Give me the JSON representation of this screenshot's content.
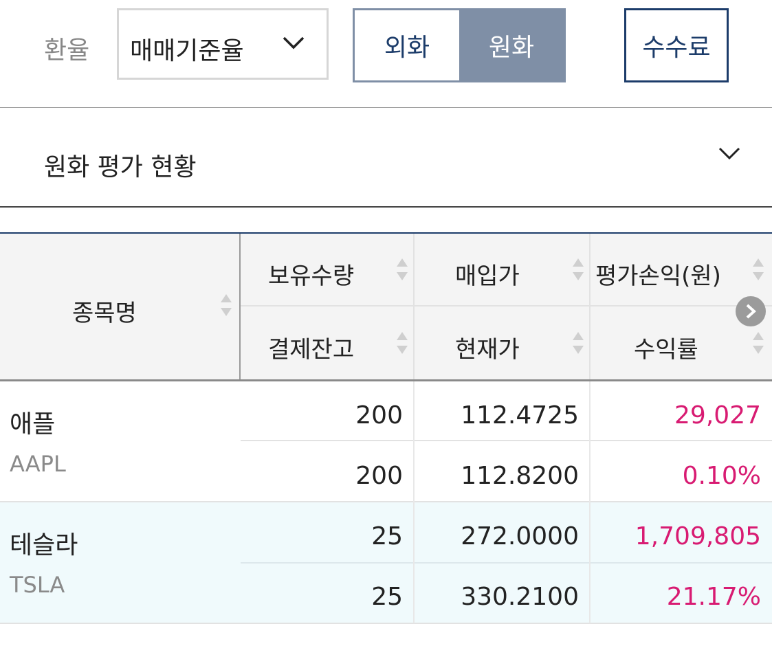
{
  "toolbar": {
    "rate_label": "환율",
    "rate_select_value": "매매기준율",
    "currency_foreign": "외화",
    "currency_krw": "원화",
    "fee_button": "수수료"
  },
  "section": {
    "title": "원화 평가 현황"
  },
  "table": {
    "headers": {
      "name": "종목명",
      "holding_qty": "보유수량",
      "purchase_price": "매입가",
      "profit_loss": "평가손익(원)",
      "settlement_balance": "결제잔고",
      "current_price": "현재가",
      "return_rate": "수익률"
    },
    "rows": [
      {
        "name": "애플",
        "ticker": "AAPL",
        "holding_qty": "200",
        "purchase_price": "112.4725",
        "profit_loss": "29,027",
        "settlement_balance": "200",
        "current_price": "112.8200",
        "return_rate": "0.10%"
      },
      {
        "name": "테슬라",
        "ticker": "TSLA",
        "holding_qty": "25",
        "purchase_price": "272.0000",
        "profit_loss": "1,709,805",
        "settlement_balance": "25",
        "current_price": "330.2100",
        "return_rate": "21.17%"
      }
    ]
  },
  "colors": {
    "navy": "#1c3c6a",
    "toggle_active": "#7f8fa6",
    "profit": "#d81b72",
    "row_highlight": "#f0fafc"
  },
  "icons": [
    "chevron-down-icon",
    "sort-icon",
    "chevron-right-icon"
  ]
}
